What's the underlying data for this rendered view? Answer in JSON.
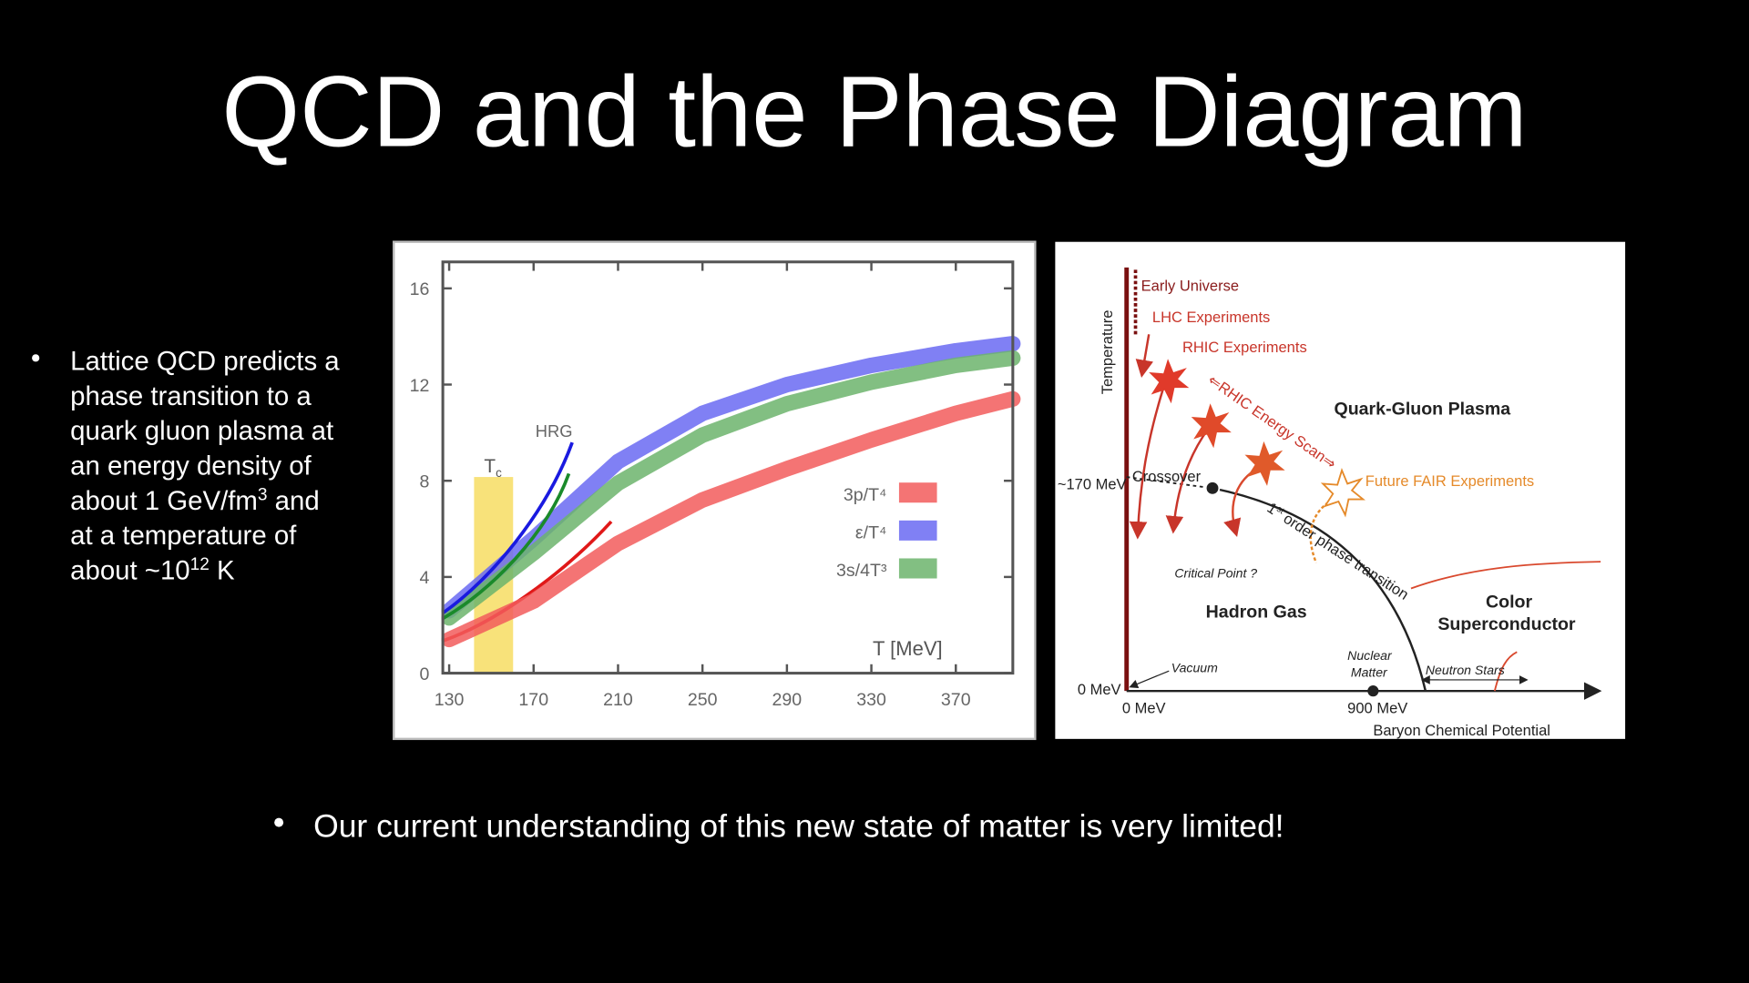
{
  "title": "QCD and the Phase Diagram",
  "bullets": [
    {
      "lines": [
        [
          {
            "text": "Lattice QCD predicts a"
          }
        ],
        [
          {
            "text": "phase transition to a"
          }
        ],
        [
          {
            "text": "quark gluon plasma at"
          }
        ],
        [
          {
            "text": "an energy density of"
          }
        ],
        [
          {
            "text": "about 1 GeV/fm"
          },
          {
            "text": "3",
            "sup": true
          },
          {
            "text": " and"
          }
        ],
        [
          {
            "text": "at a temperature of"
          }
        ],
        [
          {
            "text": "about ~10"
          },
          {
            "text": "12",
            "sup": true
          },
          {
            "text": " K"
          }
        ]
      ]
    },
    {
      "lines": [
        [
          {
            "text": "Our current understanding of this new state of matter is very limited!"
          }
        ]
      ]
    }
  ],
  "left_plot": {
    "type": "line",
    "x": [
      130,
      170,
      210,
      250,
      290,
      330,
      370,
      397
    ],
    "series": [
      {
        "name": "3p/T⁴",
        "color": "#f25c5c",
        "values": [
          1.4,
          3.0,
          5.4,
          7.2,
          8.5,
          9.7,
          10.8,
          11.4
        ]
      },
      {
        "name": "ε/T⁴",
        "color": "#6a6af2",
        "values": [
          2.6,
          5.6,
          8.8,
          10.8,
          12.0,
          12.8,
          13.4,
          13.7
        ]
      },
      {
        "name": "3s/4T³",
        "color": "#6cb46c",
        "values": [
          2.3,
          5.0,
          7.9,
          9.9,
          11.2,
          12.1,
          12.8,
          13.1
        ]
      }
    ],
    "xlim": [
      127,
      397
    ],
    "ylim": [
      0,
      17.1
    ],
    "xticks": [
      130,
      170,
      210,
      250,
      290,
      330,
      370
    ],
    "yticks": [
      0,
      4,
      8,
      12,
      16
    ],
    "x_label": "T [MeV]",
    "hrg_label": "HRG",
    "tc_label": "T",
    "tc_sub": "c"
  },
  "phase_diagram": {
    "y_axis": "Temperature",
    "x_axis": "Baryon Chemical Potential",
    "early_universe": "Early Universe",
    "lhc": "LHC Experiments",
    "rhic": "RHIC Experiments",
    "energy_scan": "⇐RHIC Energy Scan⇒",
    "qgp": "Quark-Gluon Plasma",
    "t170": "~170 MeV",
    "crossover": "Crossover",
    "critical_point": "Critical Point ?",
    "first_order": "1",
    "first_order_sup": "st",
    "first_order_rest": " order phase transition",
    "fair": "Future FAIR Experiments",
    "hadron_gas": "Hadron Gas",
    "color": "Color",
    "superconductor": "Superconductor",
    "t0": "0 MeV",
    "mu0": "0 MeV",
    "mu900": "900 MeV",
    "vacuum": "Vacuum",
    "nuclear": "Nuclear",
    "matter": "Matter",
    "neutron_stars": "Neutron Stars"
  }
}
